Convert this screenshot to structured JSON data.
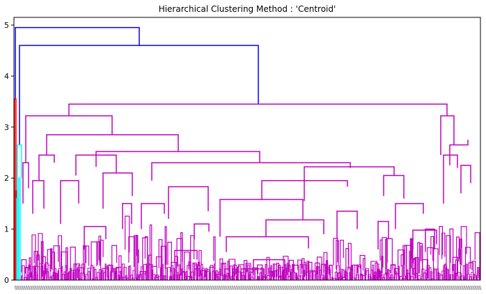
{
  "chart_data": {
    "type": "dendrogram",
    "title": "Hierarchical Clustering Method : 'Centroid'",
    "xlabel": "",
    "ylabel": "",
    "ylim": [
      0,
      5.15
    ],
    "y_ticks": [
      0,
      1,
      2,
      3,
      4,
      5
    ],
    "y_tick_labels": [
      "0",
      "1",
      "2",
      "3",
      "4",
      "5"
    ],
    "grid": false,
    "legend": "none",
    "colors": {
      "above_threshold": "#0000ff",
      "clusters": [
        "#ff0000",
        "#00ffff",
        "#bf00bf"
      ],
      "axis": "#000000"
    },
    "top_merges": [
      {
        "height": 4.95,
        "color": "#0000ff"
      },
      {
        "height": 4.6,
        "color": "#0000ff"
      },
      {
        "height": 3.45,
        "color": "#bf00bf"
      },
      {
        "height": 3.22,
        "color": "#bf00bf"
      },
      {
        "height": 3.2,
        "color": "#bf00bf"
      },
      {
        "height": 2.85,
        "color": "#bf00bf"
      },
      {
        "height": 2.75,
        "color": "#bf00bf"
      },
      {
        "height": 2.65,
        "color": "#00ffff"
      },
      {
        "height": 2.65,
        "color": "#bf00bf"
      },
      {
        "height": 2.52,
        "color": "#bf00bf"
      },
      {
        "height": 2.45,
        "color": "#bf00bf"
      },
      {
        "height": 2.3,
        "color": "#bf00bf"
      },
      {
        "height": 2.22,
        "color": "#bf00bf"
      },
      {
        "height": 1.75,
        "color": "#ff0000"
      },
      {
        "height": 1.58,
        "color": "#bf00bf"
      },
      {
        "height": 1.2,
        "color": "#bf00bf"
      },
      {
        "height": 0.85,
        "color": "#bf00bf"
      }
    ]
  }
}
